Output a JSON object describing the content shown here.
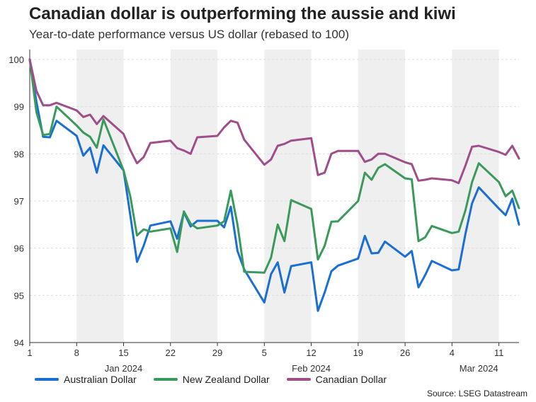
{
  "title": "Canadian dollar is outperforming the aussie and kiwi",
  "subtitle": "Year-to-date performance versus US dollar (rebased to 100)",
  "source": "Source: LSEG Datastream",
  "chart_data": {
    "type": "line",
    "ylim": [
      94,
      100
    ],
    "yticks": [
      94,
      95,
      96,
      97,
      98,
      99,
      100
    ],
    "xlim": [
      "2024-01-01",
      "2024-03-14"
    ],
    "xticks": [
      {
        "date": "2024-01-01",
        "label": "1"
      },
      {
        "date": "2024-01-08",
        "label": "8"
      },
      {
        "date": "2024-01-15",
        "label": "15"
      },
      {
        "date": "2024-01-22",
        "label": "22"
      },
      {
        "date": "2024-01-29",
        "label": "29"
      },
      {
        "date": "2024-02-05",
        "label": "5"
      },
      {
        "date": "2024-02-12",
        "label": "12"
      },
      {
        "date": "2024-02-19",
        "label": "19"
      },
      {
        "date": "2024-02-26",
        "label": "26"
      },
      {
        "date": "2024-03-04",
        "label": "4"
      },
      {
        "date": "2024-03-11",
        "label": "11"
      }
    ],
    "month_labels": [
      {
        "date": "2024-01-15",
        "label": "Jan 2024"
      },
      {
        "date": "2024-02-12",
        "label": "Feb 2024"
      },
      {
        "date": "2024-03-08",
        "label": "Mar 2024"
      }
    ],
    "shaded_ranges": [
      [
        "2024-01-08",
        "2024-01-15"
      ],
      [
        "2024-01-22",
        "2024-01-29"
      ],
      [
        "2024-02-05",
        "2024-02-12"
      ],
      [
        "2024-02-19",
        "2024-02-26"
      ],
      [
        "2024-03-04",
        "2024-03-11"
      ]
    ],
    "grid": true,
    "legend_position": "bottom-left",
    "x": [
      "2024-01-01",
      "2024-01-02",
      "2024-01-03",
      "2024-01-04",
      "2024-01-05",
      "2024-01-08",
      "2024-01-09",
      "2024-01-10",
      "2024-01-11",
      "2024-01-12",
      "2024-01-15",
      "2024-01-16",
      "2024-01-17",
      "2024-01-18",
      "2024-01-19",
      "2024-01-22",
      "2024-01-23",
      "2024-01-24",
      "2024-01-25",
      "2024-01-26",
      "2024-01-29",
      "2024-01-30",
      "2024-01-31",
      "2024-02-01",
      "2024-02-02",
      "2024-02-05",
      "2024-02-06",
      "2024-02-07",
      "2024-02-08",
      "2024-02-09",
      "2024-02-12",
      "2024-02-13",
      "2024-02-14",
      "2024-02-15",
      "2024-02-16",
      "2024-02-19",
      "2024-02-20",
      "2024-02-21",
      "2024-02-22",
      "2024-02-23",
      "2024-02-26",
      "2024-02-27",
      "2024-02-28",
      "2024-02-29",
      "2024-03-01",
      "2024-03-04",
      "2024-03-05",
      "2024-03-06",
      "2024-03-07",
      "2024-03-08",
      "2024-03-11",
      "2024-03-12",
      "2024-03-13",
      "2024-03-14"
    ],
    "series": [
      {
        "name": "Australian Dollar",
        "color": "#1a6fd4",
        "values": [
          100,
          99.1,
          98.36,
          98.35,
          98.7,
          98.38,
          97.96,
          98.13,
          97.6,
          98.18,
          97.65,
          96.7,
          95.71,
          96.05,
          96.48,
          96.57,
          96.2,
          96.76,
          96.46,
          96.58,
          96.58,
          96.44,
          96.88,
          95.94,
          95.55,
          94.85,
          95.45,
          95.7,
          95.06,
          95.62,
          95.7,
          94.67,
          95.06,
          95.51,
          95.63,
          95.78,
          96.26,
          95.89,
          95.9,
          96.14,
          95.82,
          95.94,
          95.17,
          95.43,
          95.73,
          95.53,
          95.55,
          96.3,
          96.95,
          97.29,
          96.84,
          96.7,
          97.05,
          96.5
        ]
      },
      {
        "name": "New Zealand Dollar",
        "color": "#3a9a5b",
        "values": [
          100,
          98.88,
          98.4,
          98.42,
          99.0,
          98.6,
          98.45,
          98.36,
          98.13,
          98.73,
          97.65,
          97.1,
          96.27,
          96.4,
          96.35,
          96.42,
          95.92,
          96.78,
          96.52,
          96.42,
          96.48,
          96.57,
          97.22,
          96.5,
          95.5,
          95.48,
          95.8,
          96.5,
          96.15,
          97.02,
          96.83,
          95.76,
          96.05,
          96.56,
          96.57,
          97.0,
          97.6,
          97.45,
          97.7,
          97.78,
          97.48,
          97.46,
          96.15,
          96.23,
          96.47,
          96.32,
          96.35,
          96.8,
          97.4,
          97.8,
          97.4,
          97.1,
          97.22,
          96.85
        ]
      },
      {
        "name": "Canadian Dollar",
        "color": "#a04d8b",
        "values": [
          100,
          99.33,
          99.03,
          99.03,
          99.08,
          98.92,
          98.78,
          98.83,
          98.63,
          98.8,
          98.42,
          98.08,
          97.8,
          97.93,
          98.23,
          98.28,
          98.12,
          98.07,
          98.0,
          98.35,
          98.38,
          98.56,
          98.7,
          98.66,
          98.3,
          97.77,
          97.88,
          98.17,
          98.21,
          98.28,
          98.33,
          97.55,
          97.6,
          98.0,
          98.06,
          98.06,
          97.83,
          97.88,
          98.0,
          98.0,
          97.82,
          97.78,
          97.43,
          97.45,
          97.48,
          97.44,
          97.38,
          97.75,
          98.15,
          98.17,
          98.04,
          97.98,
          98.17,
          97.9
        ]
      }
    ]
  }
}
